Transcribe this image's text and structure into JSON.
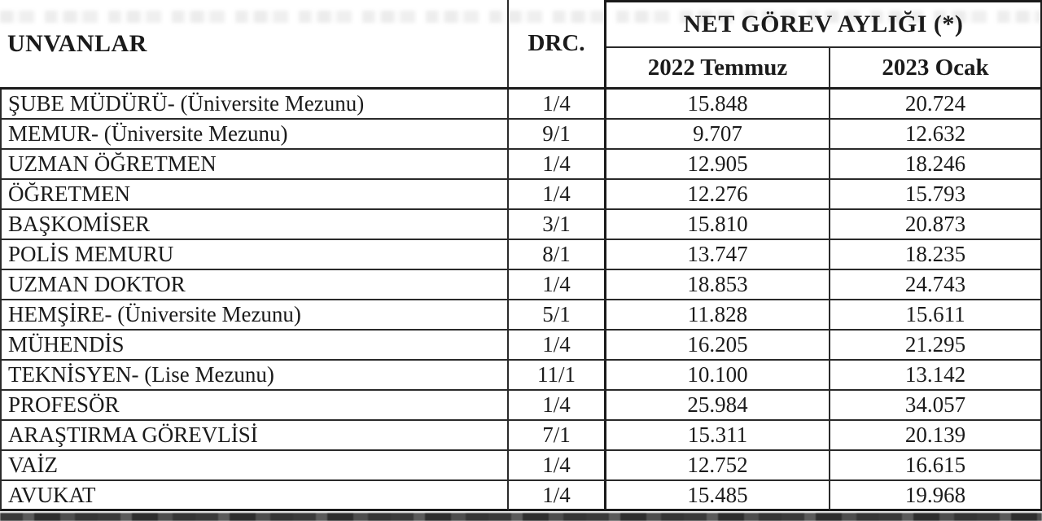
{
  "table": {
    "headers": {
      "titles_col": "UNVANLAR",
      "degree_col": "DRC.",
      "salary_group": "NET GÖREV AYLIĞI (*)",
      "period_1": "2022 Temmuz",
      "period_2": "2023 Ocak"
    },
    "rows": [
      {
        "title": "ŞUBE MÜDÜRÜ- (Üniversite Mezunu)",
        "drc": "1/4",
        "jul2022": "15.848",
        "jan2023": "20.724"
      },
      {
        "title": "MEMUR- (Üniversite Mezunu)",
        "drc": "9/1",
        "jul2022": "9.707",
        "jan2023": "12.632"
      },
      {
        "title": "UZMAN ÖĞRETMEN",
        "drc": "1/4",
        "jul2022": "12.905",
        "jan2023": "18.246"
      },
      {
        "title": "ÖĞRETMEN",
        "drc": "1/4",
        "jul2022": "12.276",
        "jan2023": "15.793"
      },
      {
        "title": "BAŞKOMİSER",
        "drc": "3/1",
        "jul2022": "15.810",
        "jan2023": "20.873"
      },
      {
        "title": "POLİS MEMURU",
        "drc": "8/1",
        "jul2022": "13.747",
        "jan2023": "18.235"
      },
      {
        "title": "UZMAN DOKTOR",
        "drc": "1/4",
        "jul2022": "18.853",
        "jan2023": "24.743"
      },
      {
        "title": "HEMŞİRE- (Üniversite Mezunu)",
        "drc": "5/1",
        "jul2022": "11.828",
        "jan2023": "15.611"
      },
      {
        "title": "MÜHENDİS",
        "drc": "1/4",
        "jul2022": "16.205",
        "jan2023": "21.295"
      },
      {
        "title": "TEKNİSYEN- (Lise Mezunu)",
        "drc": "11/1",
        "jul2022": "10.100",
        "jan2023": "13.142"
      },
      {
        "title": "PROFESÖR",
        "drc": "1/4",
        "jul2022": "25.984",
        "jan2023": "34.057"
      },
      {
        "title": "ARAŞTIRMA GÖREVLİSİ",
        "drc": "7/1",
        "jul2022": "15.311",
        "jan2023": "20.139"
      },
      {
        "title": "VAİZ",
        "drc": "1/4",
        "jul2022": "12.752",
        "jan2023": "16.615"
      },
      {
        "title": "AVUKAT",
        "drc": "1/4",
        "jul2022": "15.485",
        "jan2023": "19.968"
      }
    ]
  }
}
